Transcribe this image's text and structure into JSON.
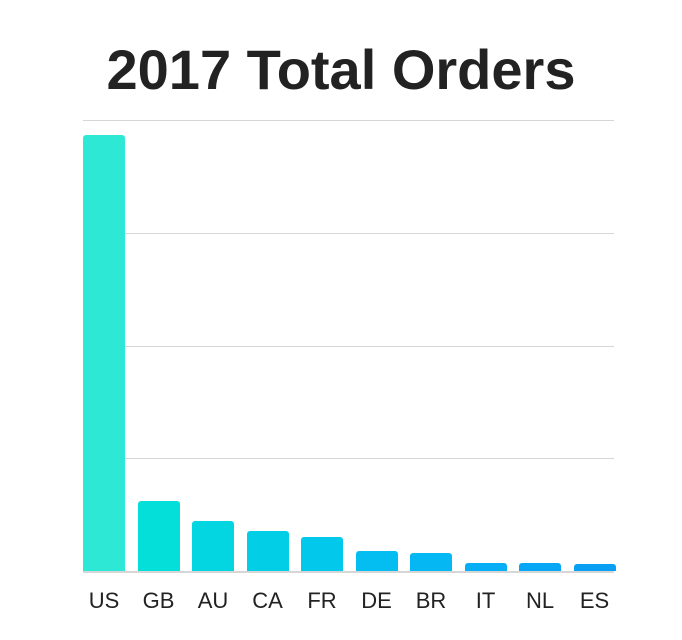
{
  "chart_data": {
    "type": "bar",
    "title": "2017 Total Orders",
    "xlabel": "",
    "ylabel": "",
    "categories": [
      "US",
      "GB",
      "AU",
      "CA",
      "FR",
      "DE",
      "BR",
      "IT",
      "NL",
      "ES"
    ],
    "values": [
      96.7,
      15.5,
      11.1,
      8.9,
      7.5,
      4.4,
      4.0,
      1.8,
      1.7,
      1.6
    ],
    "value_units": "percent of top gridline (no y-axis labels shown)",
    "ylim": [
      0,
      100
    ],
    "gridlines": [
      0,
      25,
      50,
      75,
      100
    ],
    "grid": true,
    "legend": "none",
    "colors": [
      "#2ee8d6",
      "#05dfd9",
      "#03d6e0",
      "#02cfe6",
      "#02c8ec",
      "#04bdf1",
      "#05b7f3",
      "#06aef5",
      "#07a7f5",
      "#0a9ff3"
    ]
  }
}
